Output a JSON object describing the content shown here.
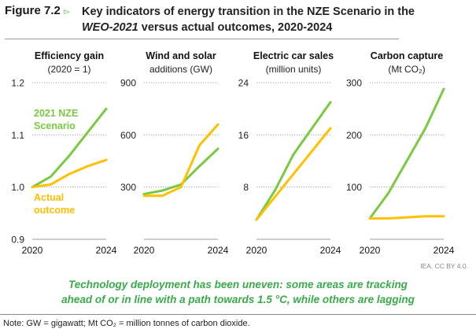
{
  "figure": {
    "label": "Figure 7.2",
    "arrow_icon": "▻",
    "title_line1": "Key indicators of energy transition in the NZE Scenario in the",
    "title_line2_italic": "WEO-2021",
    "title_line2_rest": " versus actual outcomes, 2020-2024"
  },
  "colors": {
    "nze": "#7ac943",
    "actual": "#ffc000",
    "grid": "#a6a6a6",
    "caption": "#3aaa4a"
  },
  "legend": {
    "nze": [
      "2021 NZE",
      "Scenario"
    ],
    "actual": [
      "Actual",
      "outcome"
    ]
  },
  "chart_data": [
    {
      "type": "line",
      "title": "Efficiency gain",
      "subtitle": "(2020 = 1)",
      "x": [
        2020,
        2021,
        2022,
        2023,
        2024
      ],
      "xticks": [
        "2020",
        "2024"
      ],
      "ylim": [
        0.9,
        1.2
      ],
      "yticks": [
        "0.9",
        "1.0",
        "1.1",
        "1.2"
      ],
      "ytick_values": [
        0.9,
        1.0,
        1.1,
        1.2
      ],
      "grid": true,
      "series": [
        {
          "name": "2021 NZE Scenario",
          "values": [
            1.0,
            1.02,
            1.06,
            1.105,
            1.15
          ]
        },
        {
          "name": "Actual outcome",
          "values": [
            1.0,
            1.005,
            1.025,
            1.04,
            1.052
          ]
        }
      ]
    },
    {
      "type": "line",
      "title": "Wind and solar",
      "subtitle": "additions (GW)",
      "x": [
        2020,
        2021,
        2022,
        2023,
        2024
      ],
      "xticks": [
        "2020",
        "2024"
      ],
      "ylim": [
        0,
        900
      ],
      "yticks": [
        "300",
        "600",
        "900"
      ],
      "ytick_values": [
        300,
        600,
        900
      ],
      "grid": true,
      "series": [
        {
          "name": "2021 NZE Scenario",
          "values": [
            260,
            280,
            315,
            420,
            520
          ]
        },
        {
          "name": "Actual outcome",
          "values": [
            250,
            250,
            300,
            540,
            660
          ]
        }
      ]
    },
    {
      "type": "line",
      "title": "Electric car sales",
      "subtitle": "(million units)",
      "x": [
        2020,
        2021,
        2022,
        2023,
        2024
      ],
      "xticks": [
        "2020",
        "2024"
      ],
      "ylim": [
        0,
        24
      ],
      "yticks": [
        "8",
        "16",
        "24"
      ],
      "ytick_values": [
        8,
        16,
        24
      ],
      "grid": true,
      "series": [
        {
          "name": "2021 NZE Scenario",
          "values": [
            3,
            7.5,
            13,
            17,
            21
          ]
        },
        {
          "name": "Actual outcome",
          "values": [
            3,
            6.5,
            10,
            13.5,
            17
          ]
        }
      ]
    },
    {
      "type": "line",
      "title": "Carbon capture",
      "subtitle": "(Mt CO₂)",
      "x": [
        2020,
        2021,
        2022,
        2023,
        2024
      ],
      "xticks": [
        "2020",
        "2024"
      ],
      "ylim": [
        0,
        300
      ],
      "yticks": [
        "100",
        "200",
        "300"
      ],
      "ytick_values": [
        100,
        200,
        300
      ],
      "grid": true,
      "series": [
        {
          "name": "2021 NZE Scenario",
          "values": [
            40,
            88,
            150,
            212,
            288
          ]
        },
        {
          "name": "Actual outcome",
          "values": [
            40,
            40,
            42,
            44,
            44
          ]
        }
      ]
    }
  ],
  "credit": "IEA. CC BY 4.0.",
  "caption": {
    "line1": "Technology deployment has been uneven: some areas are tracking",
    "line2": "ahead of or in line with a path towards 1.5 °C, while others are lagging"
  },
  "note": "Note: GW = gigawatt; Mt CO₂ = million tonnes of carbon dioxide."
}
